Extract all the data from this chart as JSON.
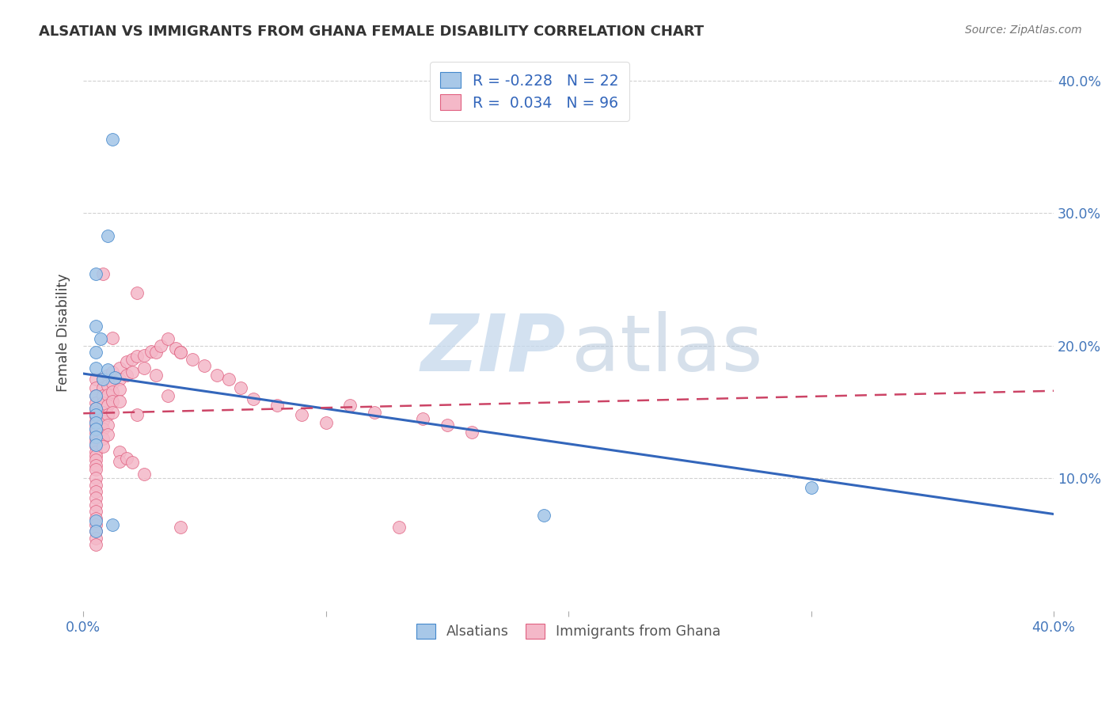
{
  "title": "ALSATIAN VS IMMIGRANTS FROM GHANA FEMALE DISABILITY CORRELATION CHART",
  "source": "Source: ZipAtlas.com",
  "ylabel": "Female Disability",
  "xlim": [
    0.0,
    0.4
  ],
  "ylim": [
    0.0,
    0.42
  ],
  "yticks": [
    0.1,
    0.2,
    0.3,
    0.4
  ],
  "xticks": [
    0.0,
    0.1,
    0.2,
    0.3,
    0.4
  ],
  "legend_line1": "R = -0.228   N = 22",
  "legend_line2": "R =  0.034   N = 96",
  "legend_bottom_blue": "Alsatians",
  "legend_bottom_pink": "Immigrants from Ghana",
  "blue_fill": "#A8C8E8",
  "blue_edge": "#4488CC",
  "pink_fill": "#F4B8C8",
  "pink_edge": "#E06080",
  "blue_line_color": "#3366BB",
  "pink_line_color": "#CC4466",
  "watermark_zip_color": "#C8D8E8",
  "watermark_atlas_color": "#B0C8D8",
  "blue_trendline": [
    [
      0.0,
      0.179
    ],
    [
      0.4,
      0.073
    ]
  ],
  "pink_trendline": [
    [
      0.0,
      0.149
    ],
    [
      0.4,
      0.166
    ]
  ],
  "alsatian_x": [
    0.012,
    0.01,
    0.005,
    0.005,
    0.007,
    0.005,
    0.005,
    0.008,
    0.01,
    0.013,
    0.005,
    0.005,
    0.005,
    0.005,
    0.005,
    0.005,
    0.005,
    0.005,
    0.005,
    0.012,
    0.3,
    0.19
  ],
  "alsatian_y": [
    0.356,
    0.283,
    0.254,
    0.215,
    0.205,
    0.195,
    0.183,
    0.175,
    0.182,
    0.176,
    0.162,
    0.153,
    0.148,
    0.142,
    0.137,
    0.131,
    0.125,
    0.068,
    0.06,
    0.065,
    0.093,
    0.072
  ],
  "ghana_x": [
    0.005,
    0.005,
    0.005,
    0.005,
    0.005,
    0.005,
    0.005,
    0.005,
    0.005,
    0.005,
    0.005,
    0.005,
    0.005,
    0.005,
    0.005,
    0.005,
    0.005,
    0.005,
    0.005,
    0.005,
    0.005,
    0.005,
    0.005,
    0.005,
    0.005,
    0.005,
    0.005,
    0.005,
    0.005,
    0.005,
    0.008,
    0.008,
    0.008,
    0.008,
    0.008,
    0.008,
    0.008,
    0.008,
    0.008,
    0.01,
    0.01,
    0.01,
    0.01,
    0.01,
    0.01,
    0.01,
    0.012,
    0.012,
    0.012,
    0.012,
    0.012,
    0.015,
    0.015,
    0.015,
    0.015,
    0.015,
    0.015,
    0.018,
    0.018,
    0.018,
    0.02,
    0.02,
    0.02,
    0.022,
    0.022,
    0.025,
    0.025,
    0.025,
    0.028,
    0.03,
    0.03,
    0.032,
    0.035,
    0.035,
    0.038,
    0.04,
    0.04,
    0.045,
    0.05,
    0.055,
    0.06,
    0.065,
    0.07,
    0.08,
    0.09,
    0.1,
    0.11,
    0.12,
    0.13,
    0.14,
    0.15,
    0.16,
    0.008,
    0.022,
    0.012,
    0.04
  ],
  "ghana_y": [
    0.175,
    0.168,
    0.162,
    0.157,
    0.153,
    0.15,
    0.147,
    0.143,
    0.14,
    0.137,
    0.134,
    0.13,
    0.127,
    0.124,
    0.12,
    0.117,
    0.114,
    0.11,
    0.107,
    0.1,
    0.095,
    0.09,
    0.085,
    0.08,
    0.075,
    0.07,
    0.065,
    0.06,
    0.055,
    0.05,
    0.175,
    0.168,
    0.162,
    0.157,
    0.15,
    0.143,
    0.137,
    0.13,
    0.124,
    0.178,
    0.17,
    0.163,
    0.155,
    0.148,
    0.14,
    0.133,
    0.18,
    0.172,
    0.165,
    0.158,
    0.15,
    0.183,
    0.175,
    0.167,
    0.158,
    0.12,
    0.113,
    0.188,
    0.178,
    0.115,
    0.19,
    0.18,
    0.112,
    0.192,
    0.148,
    0.193,
    0.183,
    0.103,
    0.196,
    0.195,
    0.178,
    0.2,
    0.205,
    0.162,
    0.198,
    0.195,
    0.063,
    0.19,
    0.185,
    0.178,
    0.175,
    0.168,
    0.16,
    0.155,
    0.148,
    0.142,
    0.155,
    0.15,
    0.063,
    0.145,
    0.14,
    0.135,
    0.254,
    0.24,
    0.206,
    0.195
  ]
}
